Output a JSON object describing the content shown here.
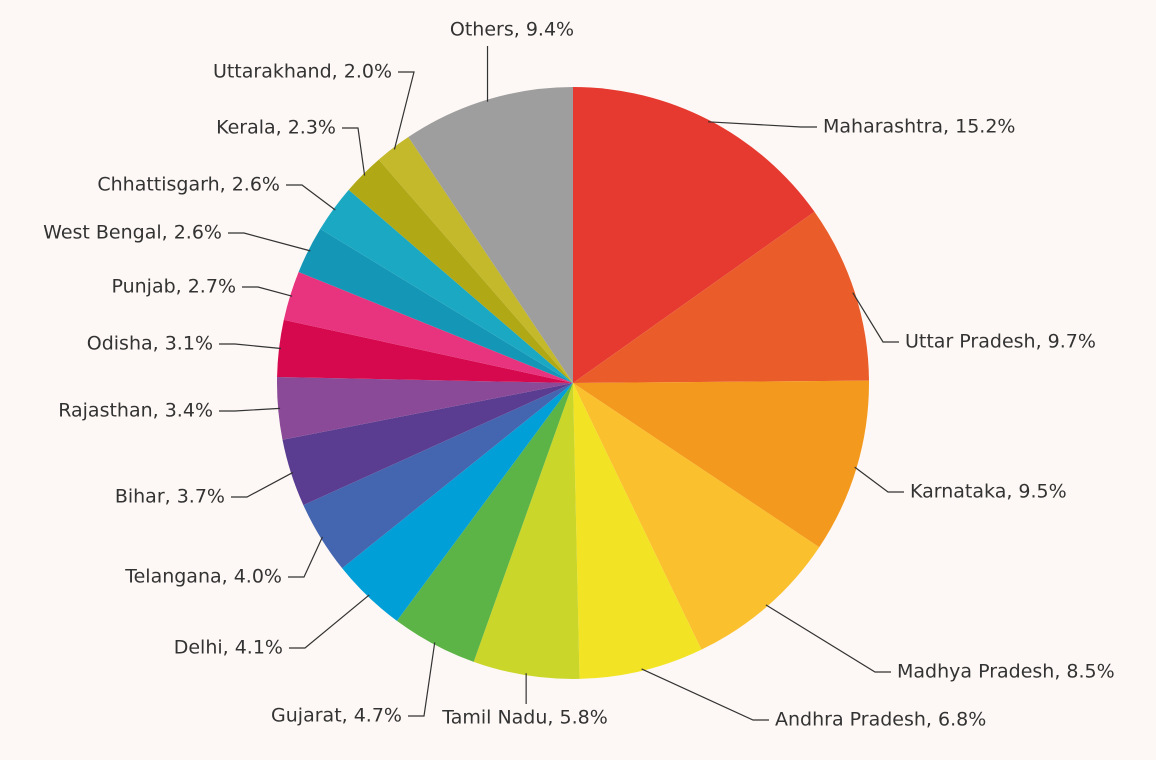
{
  "chart_data": {
    "type": "pie",
    "values": [
      15.2,
      9.7,
      9.5,
      8.5,
      6.8,
      5.8,
      4.7,
      4.1,
      4.0,
      3.7,
      3.4,
      3.1,
      2.7,
      2.6,
      2.6,
      2.3,
      2.0,
      9.4
    ],
    "value_labels": [
      "Maharashtra, 15.2%",
      "Uttar Pradesh, 9.7%",
      "Karnataka, 9.5%",
      "Madhya Pradesh, 8.5%",
      "Andhra Pradesh, 6.8%",
      "Tamil Nadu, 5.8%",
      "Gujarat, 4.7%",
      "Delhi, 4.1%",
      "Telangana, 4.0%",
      "Bihar, 3.7%",
      "Rajasthan, 3.4%",
      "Odisha, 3.1%",
      "Punjab, 2.7%",
      "West Bengal, 2.6%",
      "Chhattisgarh, 2.6%",
      "Kerala, 2.3%",
      "Uttarakhand, 2.0%",
      "Others, 9.4%"
    ],
    "colors": [
      "#e63a30",
      "#ea5d2b",
      "#f39a1e",
      "#fbc02d",
      "#f2e424",
      "#cbd62a",
      "#5db446",
      "#009fd8",
      "#4466b0",
      "#5a3d91",
      "#8b4a97",
      "#d6094e",
      "#e8347e",
      "#1497b6",
      "#1ba8c3",
      "#b0a815",
      "#c4b82b",
      "#9e9e9e"
    ]
  }
}
